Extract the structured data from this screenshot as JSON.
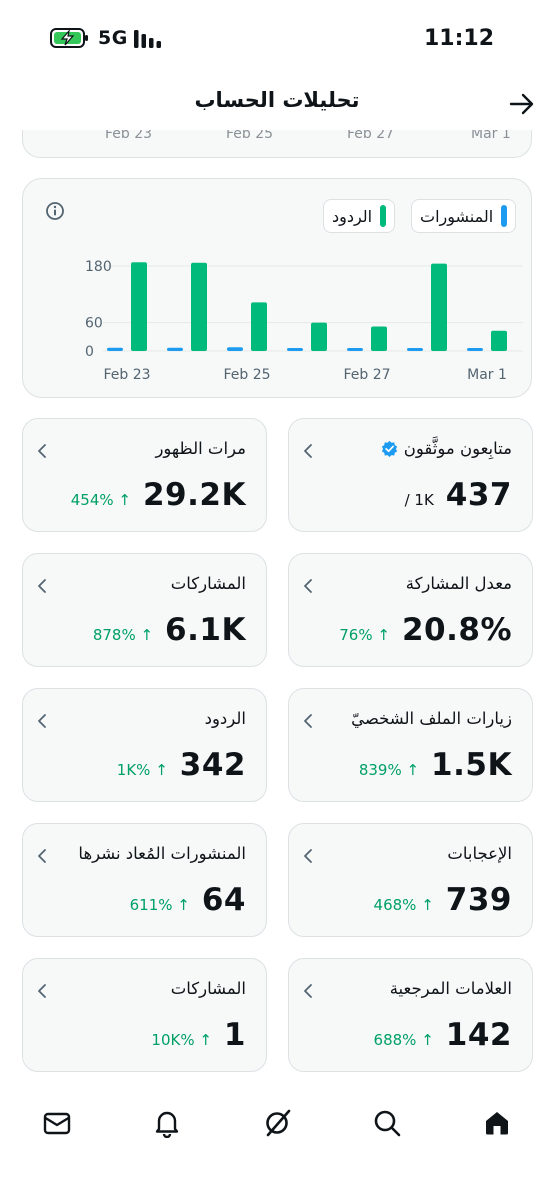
{
  "status_bar": {
    "network": "5G",
    "time": "11:12"
  },
  "header": {
    "title": "تحليلات الحساب"
  },
  "top_card": {
    "ticks": [
      "Feb 23",
      "Feb 25",
      "Feb 27",
      "Mar 1"
    ]
  },
  "chart": {
    "legend": [
      {
        "label": "المنشورات",
        "color": "#1d9bf0"
      },
      {
        "label": "الردود",
        "color": "#00ba7c"
      }
    ]
  },
  "chart_data": {
    "type": "bar",
    "categories": [
      "Feb 23",
      "Feb 24",
      "Feb 25",
      "Feb 26",
      "Feb 27",
      "Feb 28",
      "Mar 1"
    ],
    "x_tick_labels": [
      "Feb 23",
      "Feb 25",
      "Feb 27",
      "Mar 1"
    ],
    "y_tick_labels": [
      "180",
      "60",
      "0"
    ],
    "y_ticks": [
      180,
      60,
      0
    ],
    "ylim": [
      0,
      195
    ],
    "series": [
      {
        "name": "المنشورات",
        "color": "#1d9bf0",
        "values": [
          7,
          7,
          8,
          5,
          5,
          6,
          3
        ]
      },
      {
        "name": "الردود",
        "color": "#00ba7c",
        "values": [
          188,
          187,
          103,
          60,
          52,
          185,
          43
        ]
      }
    ]
  },
  "stats": [
    {
      "label": "متابِعون موثَّقون",
      "value": "437",
      "total": "/ 1K",
      "verified": true
    },
    {
      "label": "مرات الظهور",
      "value": "29.2K",
      "change": "454% ↑"
    },
    {
      "label": "معدل المشاركة",
      "value": "20.8%",
      "change": "76% ↑"
    },
    {
      "label": "المشاركات",
      "value": "6.1K",
      "change": "878% ↑"
    },
    {
      "label": "زيارات الملف الشخصيّ",
      "value": "1.5K",
      "change": "839% ↑"
    },
    {
      "label": "الردود",
      "value": "342",
      "change": "1K% ↑"
    },
    {
      "label": "الإعجابات",
      "value": "739",
      "change": "468% ↑"
    },
    {
      "label": "المنشورات المُعاد نشرها",
      "value": "64",
      "change": "611% ↑"
    },
    {
      "label": "العلامات المرجعية",
      "value": "142",
      "change": "688% ↑"
    },
    {
      "label": "المشاركات",
      "value": "1",
      "change": "10K% ↑"
    }
  ],
  "icons": {
    "battery": "battery-charging-icon",
    "signal": "signal-bars-icon",
    "back": "arrow-right-icon",
    "info": "info-icon",
    "verified": "verified-badge-icon",
    "chevron": "chevron-left-icon",
    "nav": [
      "home-icon",
      "search-icon",
      "grok-icon",
      "notifications-icon",
      "messages-icon"
    ]
  },
  "colors": {
    "accent_green": "#00ba7c",
    "change_green": "#00a067",
    "posts_blue": "#1d9bf0"
  }
}
